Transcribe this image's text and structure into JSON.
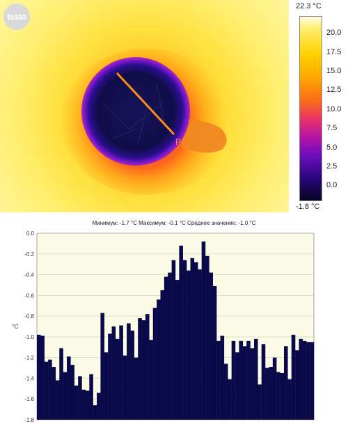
{
  "image": {
    "logo_text": "testo",
    "marker_label": "P"
  },
  "color_scale": {
    "max_label": "22.3 °C",
    "min_label": "-1.8 °C",
    "ticks": [
      {
        "value": 20.0,
        "label": "20.0"
      },
      {
        "value": 17.5,
        "label": "17.5"
      },
      {
        "value": 15.0,
        "label": "15.0"
      },
      {
        "value": 12.5,
        "label": "12.5"
      },
      {
        "value": 10.0,
        "label": "10.0"
      },
      {
        "value": 7.5,
        "label": "7.5"
      },
      {
        "value": 5.0,
        "label": "5.0"
      },
      {
        "value": 2.5,
        "label": "2.5"
      },
      {
        "value": 0.0,
        "label": "0.0"
      }
    ]
  },
  "stats_text": "Минимум: -1.7 °C Максимум: -0.1 °C Среднее значение: -1.0 °C",
  "chart_data": {
    "type": "bar",
    "ylabel": "°C",
    "ylim": [
      -1.8,
      0.0
    ],
    "yticks": [
      0.0,
      -0.2,
      -0.4,
      -0.6,
      -0.8,
      -1.0,
      -1.2,
      -1.4,
      -1.6,
      -1.8
    ],
    "ytick_labels": [
      "0.0",
      "-0.2",
      "-0.4",
      "-0.6",
      "-0.8",
      "-1.0",
      "-1.2",
      "-1.4",
      "-1.6",
      "-1.8"
    ],
    "grid": true,
    "bar_color": "#0a0a4a",
    "background": "#fbfbe6",
    "values": [
      -0.98,
      -0.99,
      -1.24,
      -1.22,
      -1.29,
      -1.42,
      -1.11,
      -1.34,
      -1.19,
      -1.27,
      -1.47,
      -1.38,
      -1.51,
      -1.52,
      -1.36,
      -1.66,
      -1.54,
      -0.77,
      -1.15,
      -0.97,
      -0.9,
      -1.02,
      -0.89,
      -1.18,
      -0.87,
      -0.94,
      -1.2,
      -0.82,
      -0.84,
      -0.78,
      -1.03,
      -0.72,
      -0.64,
      -0.55,
      -0.42,
      -0.38,
      -0.26,
      -0.45,
      -0.12,
      -0.26,
      -0.36,
      -0.24,
      -0.28,
      -0.35,
      -0.08,
      -0.22,
      -0.38,
      -0.51,
      -1.04,
      -0.99,
      -1.26,
      -1.41,
      -1.04,
      -1.15,
      -1.04,
      -1.09,
      -1.04,
      -1.11,
      -1.02,
      -1.46,
      -1.07,
      -1.3,
      -1.29,
      -1.2,
      -1.34,
      -1.35,
      -1.09,
      -1.41,
      -0.98,
      -1.13,
      -1.02,
      -1.04,
      -1.05,
      -1.05
    ]
  }
}
